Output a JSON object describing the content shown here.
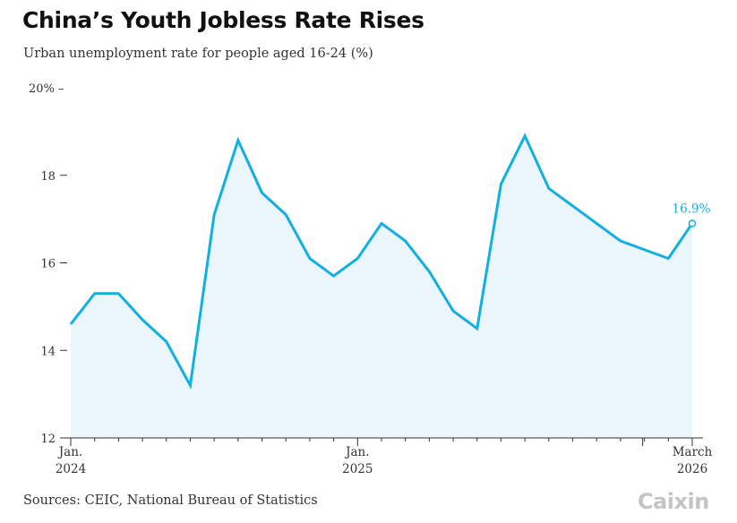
{
  "header": {
    "title": "China’s Youth Jobless Rate Rises",
    "subtitle": "Urban unemployment rate for people aged 16-24 (%)"
  },
  "footer": {
    "source": "Sources: CEIC, National Bureau of Statistics",
    "logo_text": "Caixin"
  },
  "colors": {
    "line": "#12b0e0",
    "area": "#eaf6fb",
    "axis": "#333333",
    "label": "#12b0e0"
  },
  "chart_data": {
    "type": "area",
    "title": "China’s Youth Jobless Rate Rises",
    "ylabel": "Urban unemployment rate for people aged 16-24 (%)",
    "ylim": [
      12,
      20
    ],
    "y_ticks": [
      {
        "value": 20,
        "label": "20% –"
      },
      {
        "value": 18,
        "label": "18"
      },
      {
        "value": 16,
        "label": "16"
      },
      {
        "value": 14,
        "label": "14"
      },
      {
        "value": 12,
        "label": "12"
      }
    ],
    "x_labels": [
      {
        "date": "2024-01",
        "line1": "Jan.",
        "line2": "2024"
      },
      {
        "date": "2025-01",
        "line1": "Jan.",
        "line2": "2025"
      },
      {
        "date": "2026-03",
        "line1": "March",
        "line2": "2026"
      }
    ],
    "x_ticks": [
      "2024-01",
      "2024-02",
      "2024-03",
      "2024-04",
      "2024-05",
      "2024-06",
      "2024-07",
      "2024-08",
      "2024-09",
      "2024-10",
      "2024-11",
      "2024-12",
      "2025-01",
      "2025-02",
      "2025-03",
      "2025-04",
      "2025-05",
      "2025-06",
      "2025-07",
      "2025-08",
      "2025-09",
      "2025-10",
      "2025-11",
      "2025-12",
      "2026-01",
      "2026-02",
      "2026-03"
    ],
    "series": [
      {
        "points": [
          {
            "x": "2024-01",
            "y": 14.6
          },
          {
            "x": "2024-02",
            "y": 15.3
          },
          {
            "x": "2024-03",
            "y": 15.3
          },
          {
            "x": "2024-04",
            "y": 14.7
          },
          {
            "x": "2024-05",
            "y": 14.2
          },
          {
            "x": "2024-06",
            "y": 13.2
          },
          {
            "x": "2024-07",
            "y": 17.1
          },
          {
            "x": "2024-08",
            "y": 18.8
          },
          {
            "x": "2024-09",
            "y": 17.6
          },
          {
            "x": "2024-10",
            "y": 17.1
          },
          {
            "x": "2024-11",
            "y": 16.1
          },
          {
            "x": "2024-12",
            "y": 15.7
          },
          {
            "x": "2025-01",
            "y": 16.1
          },
          {
            "x": "2025-02",
            "y": 16.9
          },
          {
            "x": "2025-03",
            "y": 16.5
          },
          {
            "x": "2025-04",
            "y": 15.8
          },
          {
            "x": "2025-05",
            "y": 14.9
          },
          {
            "x": "2025-06",
            "y": 14.5
          },
          {
            "x": "2025-07",
            "y": 17.8
          },
          {
            "x": "2025-08",
            "y": 18.9
          },
          {
            "x": "2025-09",
            "y": 17.7
          },
          {
            "x": "2025-12",
            "y": 16.5
          },
          {
            "x": "2026-02",
            "y": 16.1
          },
          {
            "x": "2026-03",
            "y": 16.9
          }
        ]
      }
    ],
    "annotations": [
      {
        "x": "2026-03",
        "y": 16.9,
        "text": "16.9%"
      }
    ],
    "grid": false
  }
}
